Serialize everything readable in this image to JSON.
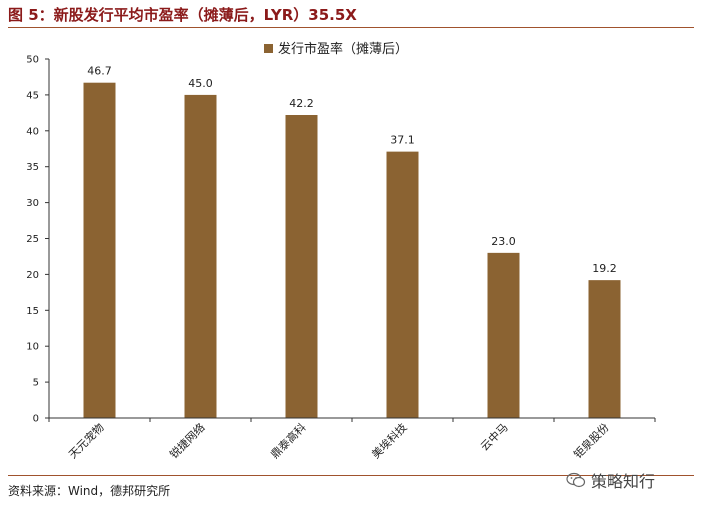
{
  "figure": {
    "title": "图 5：新股发行平均市盈率（摊薄后，LYR）35.5X",
    "source": "资料来源：Wind，德邦研究所",
    "watermark_text": "策略知行",
    "watermark_icon": "wechat-icon"
  },
  "colors": {
    "bar": "#8b6332",
    "title": "#8b1a1a",
    "rule": "#a0522d",
    "axis": "#333333"
  },
  "chart_data": {
    "type": "bar",
    "categories": [
      "天元宠物",
      "锐捷网络",
      "鼎泰高科",
      "美埃科技",
      "云中马",
      "钜泉股份"
    ],
    "series": [
      {
        "name": "发行市盈率（摊薄后）",
        "values": [
          46.7,
          45.0,
          42.2,
          37.1,
          23.0,
          19.2
        ],
        "labels": [
          "46.7",
          "45.0",
          "42.2",
          "37.1",
          "23.0",
          "19.2"
        ]
      }
    ],
    "ylim": [
      0,
      50
    ],
    "yticks": [
      "0",
      "5",
      "10",
      "15",
      "20",
      "25",
      "30",
      "35",
      "40",
      "45",
      "50"
    ],
    "grid": false,
    "legend": "top-center"
  }
}
